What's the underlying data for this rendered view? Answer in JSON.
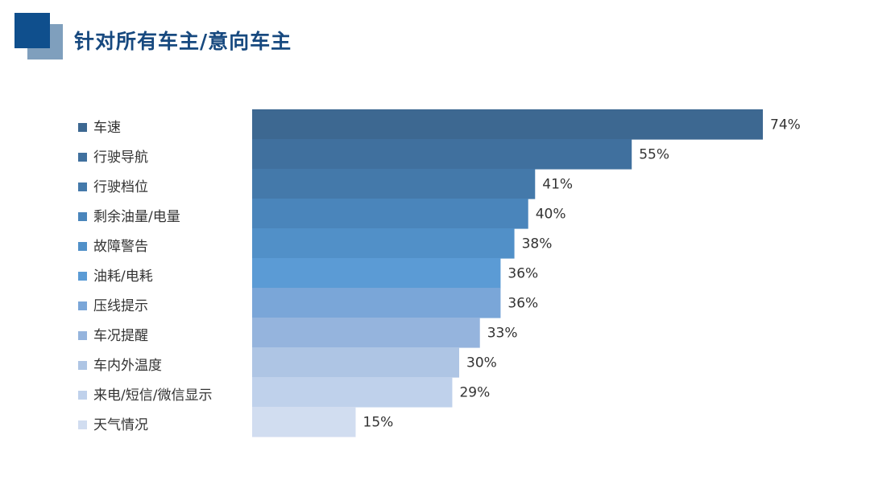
{
  "header": {
    "title": "针对所有车主/意向车主"
  },
  "chart_data": {
    "type": "bar",
    "orientation": "horizontal",
    "title": "",
    "xlabel": "",
    "ylabel": "",
    "xlim": [
      0,
      80
    ],
    "categories": [
      "车速",
      "行驶导航",
      "行驶档位",
      "剩余油量/电量",
      "故障警告",
      "油耗/电耗",
      "压线提示",
      "车况提醒",
      "车内外温度",
      "来电/短信/微信显示",
      "天气情况"
    ],
    "values": [
      74,
      55,
      41,
      40,
      38,
      36,
      36,
      33,
      30,
      29,
      15
    ],
    "value_labels": [
      "74%",
      "55%",
      "41%",
      "40%",
      "38%",
      "36%",
      "36%",
      "33%",
      "30%",
      "29%",
      "15%"
    ],
    "colors": [
      "#3d6891",
      "#40709e",
      "#4479aa",
      "#4a85bb",
      "#5190c8",
      "#5b9bd5",
      "#7aa6d8",
      "#95b4dd",
      "#aec5e4",
      "#bfd1eb",
      "#d1ddf0"
    ],
    "grid": false,
    "legend": "left"
  }
}
